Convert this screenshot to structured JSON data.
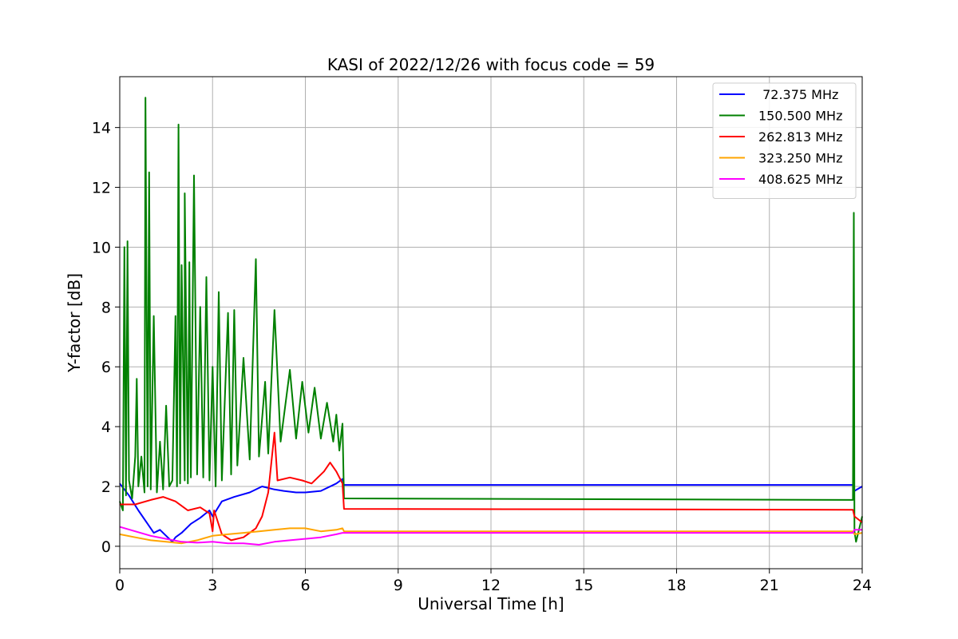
{
  "chart_data": {
    "type": "line",
    "title": "KASI of 2022/12/26 with focus code = 59",
    "xlabel": "Universal Time [h]",
    "ylabel": "Y-factor [dB]",
    "xlim": [
      0,
      24
    ],
    "ylim": [
      -0.75,
      15.7
    ],
    "xticks": [
      0,
      3,
      6,
      9,
      12,
      15,
      18,
      21,
      24
    ],
    "yticks": [
      0,
      2,
      4,
      6,
      8,
      10,
      12,
      14
    ],
    "grid": true,
    "legend_position": "top-right",
    "series": [
      {
        "name": " 72.375 MHz",
        "color": "#0000ff",
        "points": [
          [
            0,
            2.1
          ],
          [
            0.3,
            1.7
          ],
          [
            0.6,
            1.2
          ],
          [
            0.9,
            0.75
          ],
          [
            1.1,
            0.45
          ],
          [
            1.3,
            0.55
          ],
          [
            1.5,
            0.35
          ],
          [
            1.7,
            0.15
          ],
          [
            1.8,
            0.3
          ],
          [
            2.0,
            0.45
          ],
          [
            2.3,
            0.75
          ],
          [
            2.6,
            0.95
          ],
          [
            2.9,
            1.2
          ],
          [
            3.0,
            1.0
          ],
          [
            3.3,
            1.5
          ],
          [
            3.7,
            1.65
          ],
          [
            4.2,
            1.8
          ],
          [
            4.6,
            2.0
          ],
          [
            5.0,
            1.9
          ],
          [
            5.3,
            1.85
          ],
          [
            5.7,
            1.8
          ],
          [
            6.0,
            1.8
          ],
          [
            6.5,
            1.85
          ],
          [
            7.0,
            2.1
          ],
          [
            7.2,
            2.25
          ],
          [
            7.25,
            2.05
          ],
          [
            23.7,
            2.05
          ],
          [
            23.75,
            1.85
          ],
          [
            24,
            2.0
          ]
        ]
      },
      {
        "name": "150.500 MHz",
        "color": "#008000",
        "points": [
          [
            0,
            1.5
          ],
          [
            0.1,
            1.2
          ],
          [
            0.15,
            10.0
          ],
          [
            0.2,
            1.7
          ],
          [
            0.25,
            10.2
          ],
          [
            0.3,
            2.2
          ],
          [
            0.4,
            1.6
          ],
          [
            0.5,
            3.0
          ],
          [
            0.55,
            5.6
          ],
          [
            0.6,
            2.0
          ],
          [
            0.7,
            3.0
          ],
          [
            0.8,
            1.8
          ],
          [
            0.83,
            15.0
          ],
          [
            0.9,
            2.0
          ],
          [
            0.95,
            12.5
          ],
          [
            1.0,
            1.9
          ],
          [
            1.1,
            7.7
          ],
          [
            1.2,
            1.8
          ],
          [
            1.3,
            3.5
          ],
          [
            1.4,
            1.9
          ],
          [
            1.5,
            4.7
          ],
          [
            1.6,
            2.0
          ],
          [
            1.7,
            2.2
          ],
          [
            1.8,
            7.7
          ],
          [
            1.85,
            2.0
          ],
          [
            1.9,
            14.1
          ],
          [
            1.95,
            2.1
          ],
          [
            2.0,
            9.4
          ],
          [
            2.1,
            2.2
          ],
          [
            2.1,
            11.8
          ],
          [
            2.2,
            2.1
          ],
          [
            2.25,
            9.5
          ],
          [
            2.3,
            2.3
          ],
          [
            2.4,
            12.4
          ],
          [
            2.5,
            2.4
          ],
          [
            2.6,
            8.0
          ],
          [
            2.7,
            2.3
          ],
          [
            2.8,
            9.0
          ],
          [
            2.9,
            2.2
          ],
          [
            3.0,
            6.0
          ],
          [
            3.1,
            2.0
          ],
          [
            3.2,
            8.5
          ],
          [
            3.3,
            2.2
          ],
          [
            3.5,
            7.8
          ],
          [
            3.6,
            2.4
          ],
          [
            3.7,
            7.9
          ],
          [
            3.8,
            2.7
          ],
          [
            4.0,
            6.3
          ],
          [
            4.2,
            2.9
          ],
          [
            4.4,
            9.6
          ],
          [
            4.5,
            3.0
          ],
          [
            4.7,
            5.5
          ],
          [
            4.8,
            3.1
          ],
          [
            5.0,
            7.9
          ],
          [
            5.2,
            3.5
          ],
          [
            5.5,
            5.9
          ],
          [
            5.7,
            3.6
          ],
          [
            5.9,
            5.5
          ],
          [
            6.1,
            3.8
          ],
          [
            6.3,
            5.3
          ],
          [
            6.5,
            3.6
          ],
          [
            6.7,
            4.8
          ],
          [
            6.9,
            3.5
          ],
          [
            7.0,
            4.4
          ],
          [
            7.1,
            3.2
          ],
          [
            7.2,
            4.1
          ],
          [
            7.25,
            1.6
          ],
          [
            23.7,
            1.55
          ],
          [
            23.73,
            11.15
          ],
          [
            23.75,
            0.5
          ],
          [
            23.8,
            0.15
          ],
          [
            24,
            1.0
          ]
        ]
      },
      {
        "name": "262.813 MHz",
        "color": "#ff0000",
        "points": [
          [
            0,
            1.4
          ],
          [
            0.5,
            1.4
          ],
          [
            1.0,
            1.55
          ],
          [
            1.4,
            1.65
          ],
          [
            1.8,
            1.5
          ],
          [
            2.2,
            1.2
          ],
          [
            2.6,
            1.3
          ],
          [
            2.9,
            1.1
          ],
          [
            3.0,
            0.5
          ],
          [
            3.05,
            1.2
          ],
          [
            3.3,
            0.4
          ],
          [
            3.6,
            0.2
          ],
          [
            4.0,
            0.3
          ],
          [
            4.4,
            0.6
          ],
          [
            4.6,
            1.0
          ],
          [
            4.8,
            1.8
          ],
          [
            5.0,
            3.8
          ],
          [
            5.1,
            2.2
          ],
          [
            5.5,
            2.3
          ],
          [
            5.9,
            2.2
          ],
          [
            6.2,
            2.1
          ],
          [
            6.6,
            2.5
          ],
          [
            6.8,
            2.8
          ],
          [
            7.0,
            2.5
          ],
          [
            7.2,
            2.1
          ],
          [
            7.25,
            1.25
          ],
          [
            23.7,
            1.22
          ],
          [
            23.75,
            1.0
          ],
          [
            24,
            0.8
          ]
        ]
      },
      {
        "name": "323.250 MHz",
        "color": "#ffa500",
        "points": [
          [
            0,
            0.4
          ],
          [
            0.5,
            0.3
          ],
          [
            1.0,
            0.2
          ],
          [
            1.5,
            0.15
          ],
          [
            2.0,
            0.1
          ],
          [
            2.5,
            0.2
          ],
          [
            3.0,
            0.35
          ],
          [
            3.5,
            0.4
          ],
          [
            4.0,
            0.45
          ],
          [
            4.5,
            0.5
          ],
          [
            5.0,
            0.55
          ],
          [
            5.5,
            0.6
          ],
          [
            6.0,
            0.6
          ],
          [
            6.5,
            0.5
          ],
          [
            7.0,
            0.55
          ],
          [
            7.2,
            0.6
          ],
          [
            7.25,
            0.5
          ],
          [
            23.7,
            0.5
          ],
          [
            23.75,
            0.4
          ],
          [
            24,
            0.45
          ]
        ]
      },
      {
        "name": "408.625 MHz",
        "color": "#ff00ff",
        "points": [
          [
            0,
            0.65
          ],
          [
            0.5,
            0.5
          ],
          [
            1.0,
            0.35
          ],
          [
            1.5,
            0.25
          ],
          [
            2.0,
            0.15
          ],
          [
            2.5,
            0.12
          ],
          [
            3.0,
            0.15
          ],
          [
            3.5,
            0.1
          ],
          [
            4.0,
            0.1
          ],
          [
            4.5,
            0.05
          ],
          [
            5.0,
            0.15
          ],
          [
            5.5,
            0.2
          ],
          [
            6.0,
            0.25
          ],
          [
            6.5,
            0.3
          ],
          [
            7.0,
            0.4
          ],
          [
            7.2,
            0.45
          ],
          [
            7.25,
            0.45
          ],
          [
            23.7,
            0.45
          ],
          [
            23.75,
            0.55
          ],
          [
            24,
            0.55
          ]
        ]
      }
    ]
  }
}
